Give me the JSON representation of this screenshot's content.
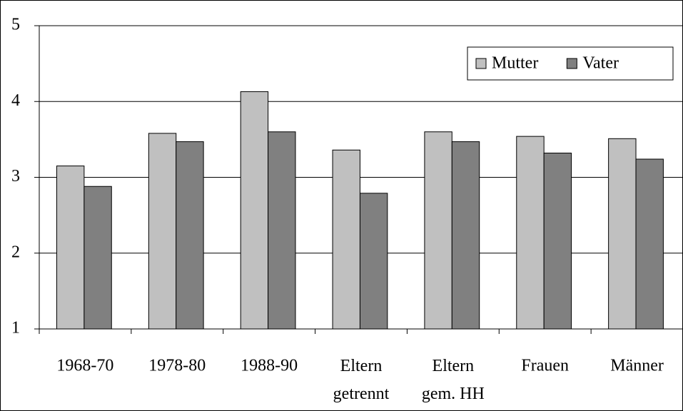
{
  "chart_data": {
    "type": "bar",
    "categories": [
      "1968-70",
      "1978-80",
      "1988-90",
      "Eltern getrennt",
      "Eltern gem. HH",
      "Frauen",
      "Männer"
    ],
    "series": [
      {
        "name": "Mutter",
        "color": "#c0c0c0",
        "values": [
          3.15,
          3.58,
          4.13,
          3.36,
          3.6,
          3.54,
          3.51
        ]
      },
      {
        "name": "Vater",
        "color": "#808080",
        "values": [
          2.88,
          3.47,
          3.6,
          2.79,
          3.47,
          3.32,
          3.24
        ]
      }
    ],
    "ylim": [
      1,
      5
    ],
    "yticks": [
      1,
      2,
      3,
      4,
      5
    ],
    "grid": true,
    "legend": "top-right"
  }
}
